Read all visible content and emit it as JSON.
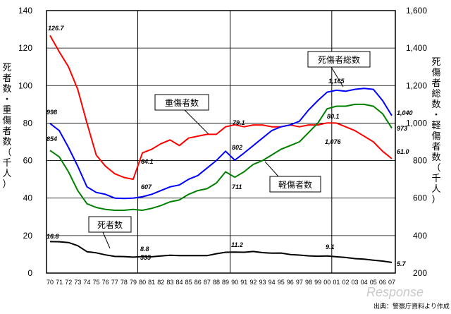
{
  "chart_data": {
    "type": "line",
    "x": [
      "70",
      "71",
      "72",
      "73",
      "74",
      "75",
      "76",
      "77",
      "78",
      "79",
      "80",
      "81",
      "82",
      "83",
      "84",
      "85",
      "86",
      "87",
      "88",
      "89",
      "90",
      "91",
      "92",
      "93",
      "94",
      "95",
      "96",
      "97",
      "98",
      "99",
      "00",
      "01",
      "02",
      "03",
      "04",
      "05",
      "06",
      "07"
    ],
    "left_axis": {
      "label": "死者数・重傷者数（千人）",
      "ylim": [
        0,
        140
      ],
      "ticks": [
        "0",
        "20",
        "40",
        "60",
        "80",
        "100",
        "120",
        "140"
      ]
    },
    "right_axis": {
      "label": "死傷者総数・軽傷者数（千人）",
      "ylim": [
        200,
        1600
      ],
      "ticks": [
        "200",
        "400",
        "600",
        "800",
        "1,000",
        "1,200",
        "1,400",
        "1,600"
      ]
    },
    "vertical_lines_at": [
      "79",
      "89",
      "00"
    ],
    "series": [
      {
        "name": "重傷者数",
        "axis": "left",
        "color": "#ff0000",
        "values": [
          126.7,
          118,
          110,
          98,
          80,
          63,
          57,
          53,
          51,
          50,
          64.1,
          66,
          69,
          71,
          68,
          72,
          73,
          74,
          74,
          78,
          79.1,
          78,
          79,
          79,
          78,
          78,
          79,
          78,
          79,
          79,
          80.1,
          80,
          78,
          76,
          73,
          70,
          65,
          61.0
        ]
      },
      {
        "name": "死傷者総数",
        "axis": "right",
        "color": "#0000ff",
        "values": [
          998,
          960,
          870,
          770,
          660,
          630,
          620,
          600,
          598,
          600,
          607,
          620,
          640,
          660,
          670,
          700,
          720,
          760,
          800,
          850,
          802,
          840,
          880,
          920,
          960,
          980,
          990,
          1010,
          1070,
          1120,
          1165,
          1175,
          1170,
          1180,
          1185,
          1180,
          1120,
          1040
        ]
      },
      {
        "name": "軽傷者数",
        "axis": "right",
        "color": "#008000",
        "values": [
          854,
          820,
          740,
          640,
          570,
          550,
          540,
          535,
          535,
          540,
          535,
          545,
          560,
          580,
          590,
          620,
          640,
          650,
          680,
          740,
          711,
          740,
          780,
          800,
          830,
          860,
          880,
          900,
          950,
          1000,
          1076,
          1090,
          1090,
          1100,
          1100,
          1090,
          1050,
          973
        ]
      },
      {
        "name": "死者数",
        "axis": "left",
        "color": "#000000",
        "values": [
          16.8,
          16.7,
          16.3,
          14.6,
          11.4,
          10.8,
          9.7,
          8.9,
          8.8,
          8.5,
          8.8,
          8.7,
          9.1,
          9.5,
          9.3,
          9.3,
          9.3,
          9.3,
          10.3,
          11.1,
          11.2,
          11.1,
          11.5,
          10.9,
          10.6,
          10.7,
          9.9,
          9.6,
          9.2,
          9.0,
          9.1,
          8.7,
          8.3,
          7.7,
          7.4,
          6.9,
          6.4,
          5.7
        ]
      }
    ],
    "data_labels": [
      {
        "text": "126.7"
      },
      {
        "text": "998"
      },
      {
        "text": "854"
      },
      {
        "text": "16.8"
      },
      {
        "text": "64.1"
      },
      {
        "text": "607"
      },
      {
        "text": "535"
      },
      {
        "text": "8.8"
      },
      {
        "text": "79.1"
      },
      {
        "text": "802"
      },
      {
        "text": "711"
      },
      {
        "text": "11.2"
      },
      {
        "text": "1,165"
      },
      {
        "text": "80.1"
      },
      {
        "text": "1,076"
      },
      {
        "text": "9.1"
      },
      {
        "text": "1,040"
      },
      {
        "text": "973"
      },
      {
        "text": "61.0"
      },
      {
        "text": "5.7"
      }
    ],
    "callouts": [
      {
        "text": "死傷者総数"
      },
      {
        "text": "重傷者数"
      },
      {
        "text": "軽傷者数"
      },
      {
        "text": "死者数"
      }
    ],
    "source": "出典：警察庁資料より作成",
    "watermark": "Response"
  }
}
